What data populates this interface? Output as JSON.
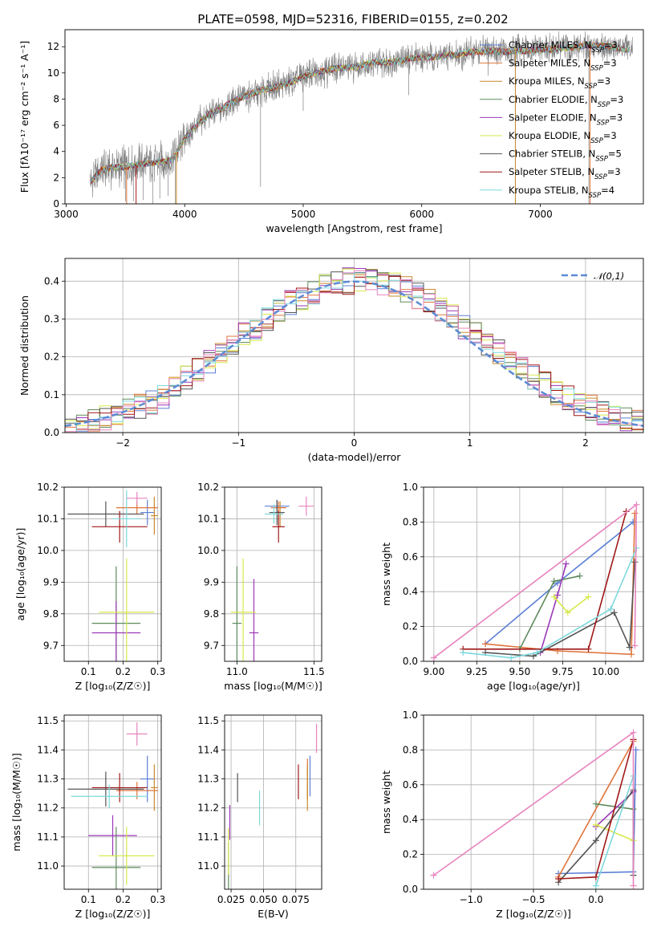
{
  "colors": {
    "chabrier_miles": "#5B7FD4",
    "salpeter_miles": "#E0743C",
    "kroupa_miles": "#C98A2C",
    "chabrier_elodie": "#5E8A5C",
    "salpeter_elodie": "#9B38B8",
    "kroupa_elodie": "#D8E84C",
    "chabrier_stelib": "#555555",
    "salpeter_stelib": "#A01818",
    "kroupa_stelib": "#7CD8DC",
    "extra": "#E784BE",
    "gaussian": "#5B8BD4",
    "spectrum": "#808080"
  },
  "chart_data": [
    {
      "panel": "spectrum",
      "type": "line",
      "title": "PLATE=0598, MJD=52316, FIBERID=0155, z=0.202",
      "xlabel": "wavelength [Angstrom, rest frame]",
      "ylabel": "Flux [fλ10⁻¹⁷ erg cm⁻² s⁻¹ A⁻¹]",
      "xlim": [
        2990,
        7870
      ],
      "ylim": [
        0,
        13.3
      ],
      "xticks": [
        "3000",
        "4000",
        "5000",
        "6000",
        "7000"
      ],
      "yticks": [
        "0",
        "2",
        "4",
        "6",
        "8",
        "10",
        "12"
      ],
      "legend_position": "upper right",
      "legend": [
        {
          "label": "Chabrier MILES, N",
          "sub": "SSP",
          "tail": "=3",
          "color": "chabrier_miles"
        },
        {
          "label": "Salpeter MILES, N",
          "sub": "SSP",
          "tail": "=3",
          "color": "salpeter_miles"
        },
        {
          "label": "Kroupa MILES, N",
          "sub": "SSP",
          "tail": "=3",
          "color": "kroupa_miles"
        },
        {
          "label": "Chabrier ELODIE, N",
          "sub": "SSP",
          "tail": "=3",
          "color": "chabrier_elodie"
        },
        {
          "label": "Salpeter ELODIE, N",
          "sub": "SSP",
          "tail": "=3",
          "color": "salpeter_elodie"
        },
        {
          "label": "Kroupa ELODIE, N",
          "sub": "SSP",
          "tail": "=3",
          "color": "kroupa_elodie"
        },
        {
          "label": "Chabrier STELIB, N",
          "sub": "SSP",
          "tail": "=5",
          "color": "chabrier_stelib"
        },
        {
          "label": "Salpeter STELIB, N",
          "sub": "SSP",
          "tail": "=3",
          "color": "salpeter_stelib"
        },
        {
          "label": "Kroupa STELIB, N",
          "sub": "SSP",
          "tail": "=4",
          "color": "kroupa_stelib"
        }
      ],
      "continuum": {
        "x": [
          3200,
          3300,
          3400,
          3500,
          3600,
          3700,
          3800,
          3900,
          4000,
          4100,
          4200,
          4300,
          4400,
          4500,
          4600,
          4700,
          4800,
          4900,
          5000,
          5100,
          5200,
          5300,
          5400,
          5500,
          5600,
          5700,
          5800,
          5900,
          6000,
          6100,
          6200,
          6300,
          6400,
          6500,
          6600,
          6700,
          6800,
          6900,
          7000,
          7100,
          7200,
          7300,
          7400,
          7500,
          7600,
          7700
        ],
        "y": [
          1.6,
          2.6,
          2.8,
          2.8,
          3.0,
          3.1,
          3.2,
          3.4,
          5.0,
          6.0,
          6.8,
          7.2,
          7.8,
          8.2,
          8.5,
          8.8,
          9.0,
          9.3,
          9.7,
          10.0,
          10.2,
          10.4,
          10.4,
          10.6,
          10.8,
          10.8,
          10.9,
          11.1,
          11.2,
          11.2,
          11.3,
          11.4,
          11.6,
          11.6,
          11.7,
          11.6,
          11.7,
          11.7,
          11.8,
          11.8,
          11.9,
          12.0,
          12.1,
          12.1,
          12.0,
          11.8
        ]
      },
      "spikes": [
        {
          "x": 3500,
          "y": 0.2
        },
        {
          "x": 3570,
          "y": 0.2
        },
        {
          "x": 3650,
          "y": 0.3
        },
        {
          "x": 3730,
          "y": 0.0
        },
        {
          "x": 3790,
          "y": 0.4
        },
        {
          "x": 3860,
          "y": 0.6
        },
        {
          "x": 3920,
          "y": 0.0
        },
        {
          "x": 4640,
          "y": 1.3
        },
        {
          "x": 5000,
          "y": 7.1
        },
        {
          "x": 5180,
          "y": 8.8
        },
        {
          "x": 5260,
          "y": 9.4
        },
        {
          "x": 5890,
          "y": 8.3
        },
        {
          "x": 6560,
          "y": 9.8
        },
        {
          "x": 6790,
          "y": 0.0
        },
        {
          "x": 7410,
          "y": 0.0
        }
      ]
    },
    {
      "panel": "residuals",
      "type": "step-histogram",
      "xlabel": "(data-model)/error",
      "ylabel": "Normed distribution",
      "xlim": [
        -2.5,
        2.5
      ],
      "ylim": [
        0,
        0.46
      ],
      "xticks": [
        "−2",
        "−1",
        "0",
        "1",
        "2"
      ],
      "yticks": [
        "0.0",
        "0.1",
        "0.2",
        "0.3",
        "0.4"
      ],
      "legend": [
        {
          "label": "𝒩(0,1)",
          "color": "gaussian"
        }
      ],
      "legend_position": "upper right",
      "bin_width": 0.1,
      "profile": [
        0.015,
        0.022,
        0.03,
        0.04,
        0.046,
        0.055,
        0.068,
        0.082,
        0.098,
        0.118,
        0.142,
        0.162,
        0.185,
        0.205,
        0.228,
        0.255,
        0.278,
        0.3,
        0.322,
        0.34,
        0.355,
        0.372,
        0.385,
        0.395,
        0.4,
        0.405,
        0.4,
        0.398,
        0.392,
        0.378,
        0.362,
        0.345,
        0.325,
        0.305,
        0.282,
        0.258,
        0.238,
        0.212,
        0.188,
        0.168,
        0.146,
        0.126,
        0.106,
        0.092,
        0.078,
        0.065,
        0.054,
        0.045,
        0.035,
        0.026
      ]
    },
    {
      "panel": "age-vs-Z",
      "type": "scatter-errorbar",
      "xlabel": "Z [log₁₀(Z/Z☉)]",
      "ylabel": "age  [log₁₀(age/yr)]",
      "xlim": [
        0.03,
        0.31
      ],
      "ylim": [
        9.65,
        10.2
      ],
      "xticks": [
        "0.1",
        "0.2",
        "0.3"
      ],
      "yticks": [
        "9.7",
        "9.8",
        "9.9",
        "10.0",
        "10.1",
        "10.2"
      ],
      "points": [
        {
          "c": "chabrier_miles",
          "x": 0.27,
          "xe": 0.02,
          "y": 10.12,
          "ye": 0.04
        },
        {
          "c": "salpeter_miles",
          "x": 0.24,
          "xe": 0.06,
          "y": 10.135,
          "ye": 0.02
        },
        {
          "c": "kroupa_miles",
          "x": 0.29,
          "xe": 0.01,
          "y": 10.11,
          "ye": 0.06
        },
        {
          "c": "chabrier_elodie",
          "x": 0.18,
          "xe": 0.07,
          "y": 9.77,
          "ye": 0.18
        },
        {
          "c": "salpeter_elodie",
          "x": 0.18,
          "xe": 0.07,
          "y": 9.74,
          "ye": 0.1
        },
        {
          "c": "kroupa_elodie",
          "x": 0.21,
          "xe": 0.08,
          "y": 9.805,
          "ye": 0.17
        },
        {
          "c": "chabrier_stelib",
          "x": 0.15,
          "xe": 0.11,
          "y": 10.115,
          "ye": 0.04
        },
        {
          "c": "salpeter_stelib",
          "x": 0.19,
          "xe": 0.08,
          "y": 10.075,
          "ye": 0.05
        },
        {
          "c": "kroupa_stelib",
          "x": 0.21,
          "xe": 0.04,
          "y": 10.1,
          "ye": 0.09
        },
        {
          "c": "extra",
          "x": 0.24,
          "xe": 0.03,
          "y": 10.165,
          "ye": 0.02
        }
      ]
    },
    {
      "panel": "age-vs-mass",
      "type": "scatter-errorbar",
      "xlabel": "mass [log₁₀(M/M☉)]",
      "ylabel": "",
      "xlim": [
        10.92,
        11.55
      ],
      "ylim": [
        9.65,
        10.2
      ],
      "xticks": [
        "11.0",
        "11.5"
      ],
      "yticks": [
        "9.7",
        "9.8",
        "9.9",
        "10.0",
        "10.1",
        "10.2"
      ],
      "points": [
        {
          "c": "chabrier_miles",
          "x": 11.26,
          "xe": 0.08,
          "y": 10.14,
          "ye": 0.02
        },
        {
          "c": "salpeter_miles",
          "x": 11.27,
          "xe": 0.05,
          "y": 10.135,
          "ye": 0.02
        },
        {
          "c": "kroupa_miles",
          "x": 11.28,
          "xe": 0.02,
          "y": 10.115,
          "ye": 0.04
        },
        {
          "c": "chabrier_elodie",
          "x": 11.0,
          "xe": 0.03,
          "y": 9.77,
          "ye": 0.18
        },
        {
          "c": "salpeter_elodie",
          "x": 11.11,
          "xe": 0.03,
          "y": 9.74,
          "ye": 0.17
        },
        {
          "c": "kroupa_elodie",
          "x": 11.04,
          "xe": 0.08,
          "y": 9.805,
          "ye": 0.17
        },
        {
          "c": "chabrier_stelib",
          "x": 11.26,
          "xe": 0.05,
          "y": 10.12,
          "ye": 0.04
        },
        {
          "c": "salpeter_stelib",
          "x": 11.27,
          "xe": 0.04,
          "y": 10.075,
          "ye": 0.05
        },
        {
          "c": "kroupa_stelib",
          "x": 11.24,
          "xe": 0.06,
          "y": 10.115,
          "ye": 0.03
        },
        {
          "c": "extra",
          "x": 11.45,
          "xe": 0.05,
          "y": 10.14,
          "ye": 0.03
        }
      ]
    },
    {
      "panel": "massweight-vs-age",
      "type": "line",
      "xlabel": "age  [log₁₀(age/yr)]",
      "ylabel": "mass weight",
      "xlim": [
        8.94,
        10.22
      ],
      "ylim": [
        0,
        1.0
      ],
      "xticks": [
        "9.00",
        "9.25",
        "9.50",
        "9.75",
        "10.00"
      ],
      "yticks": [
        "0.0",
        "0.2",
        "0.4",
        "0.6",
        "0.8",
        "1.0"
      ],
      "series": [
        {
          "c": "chabrier_miles",
          "pts": [
            [
              9.3,
              0.1
            ],
            [
              9.72,
              0.45
            ],
            [
              10.16,
              0.8
            ]
          ]
        },
        {
          "c": "salpeter_miles",
          "pts": [
            [
              9.3,
              0.1
            ],
            [
              9.72,
              0.06
            ],
            [
              10.15,
              0.04
            ],
            [
              10.17,
              0.85
            ]
          ]
        },
        {
          "c": "chabrier_elodie",
          "pts": [
            [
              9.5,
              0.07
            ],
            [
              9.7,
              0.46
            ],
            [
              9.85,
              0.49
            ]
          ]
        },
        {
          "c": "salpeter_elodie",
          "pts": [
            [
              9.62,
              0.05
            ],
            [
              9.72,
              0.38
            ],
            [
              9.77,
              0.56
            ]
          ]
        },
        {
          "c": "kroupa_elodie",
          "pts": [
            [
              9.7,
              0.37
            ],
            [
              9.78,
              0.28
            ],
            [
              9.9,
              0.37
            ]
          ]
        },
        {
          "c": "chabrier_stelib",
          "pts": [
            [
              9.3,
              0.05
            ],
            [
              9.58,
              0.03
            ],
            [
              10.05,
              0.28
            ],
            [
              10.14,
              0.08
            ],
            [
              10.17,
              0.57
            ]
          ]
        },
        {
          "c": "salpeter_stelib",
          "pts": [
            [
              9.17,
              0.07
            ],
            [
              9.9,
              0.07
            ],
            [
              10.12,
              0.86
            ]
          ]
        },
        {
          "c": "kroupa_stelib",
          "pts": [
            [
              9.17,
              0.05
            ],
            [
              9.45,
              0.02
            ],
            [
              9.6,
              0.05
            ],
            [
              10.03,
              0.3
            ],
            [
              10.18,
              0.65
            ]
          ]
        },
        {
          "c": "extra",
          "pts": [
            [
              9.0,
              0.02
            ],
            [
              10.18,
              0.9
            ],
            [
              10.17,
              0.09
            ]
          ]
        }
      ]
    },
    {
      "panel": "mass-vs-Z",
      "type": "scatter-errorbar",
      "xlabel": "Z [log₁₀(Z/Z☉)]",
      "ylabel": "mass [log₁₀(M/M☉)]",
      "xlim": [
        0.03,
        0.31
      ],
      "ylim": [
        10.92,
        11.52
      ],
      "xticks": [
        "0.1",
        "0.2",
        "0.3"
      ],
      "yticks": [
        "11.0",
        "11.1",
        "11.2",
        "11.3",
        "11.4",
        "11.5"
      ],
      "points": [
        {
          "c": "chabrier_miles",
          "x": 0.27,
          "xe": 0.02,
          "y": 11.3,
          "ye": 0.08
        },
        {
          "c": "salpeter_miles",
          "x": 0.24,
          "xe": 0.06,
          "y": 11.26,
          "ye": 0.03
        },
        {
          "c": "kroupa_miles",
          "x": 0.29,
          "xe": 0.01,
          "y": 11.27,
          "ye": 0.08
        },
        {
          "c": "chabrier_elodie",
          "x": 0.18,
          "xe": 0.07,
          "y": 10.995,
          "ye": 0.14
        },
        {
          "c": "salpeter_elodie",
          "x": 0.17,
          "xe": 0.07,
          "y": 11.105,
          "ye": 0.07
        },
        {
          "c": "kroupa_elodie",
          "x": 0.21,
          "xe": 0.08,
          "y": 11.035,
          "ye": 0.1
        },
        {
          "c": "chabrier_stelib",
          "x": 0.15,
          "xe": 0.11,
          "y": 11.265,
          "ye": 0.06
        },
        {
          "c": "salpeter_stelib",
          "x": 0.19,
          "xe": 0.08,
          "y": 11.27,
          "ye": 0.05
        },
        {
          "c": "kroupa_stelib",
          "x": 0.16,
          "xe": 0.11,
          "y": 11.24,
          "ye": 0.04
        },
        {
          "c": "extra",
          "x": 0.24,
          "xe": 0.03,
          "y": 11.455,
          "ye": 0.04
        }
      ]
    },
    {
      "panel": "mass-vs-EBV",
      "type": "scatter-errorbar",
      "xlabel": "E(B-V)",
      "ylabel": "",
      "xlim": [
        0.02,
        0.095
      ],
      "ylim": [
        10.92,
        11.52
      ],
      "xticks": [
        "0.025",
        "0.050",
        "0.075"
      ],
      "yticks": [
        "11.0",
        "11.1",
        "11.2",
        "11.3",
        "11.4",
        "11.5"
      ],
      "points": [
        {
          "c": "chabrier_miles",
          "x": 0.086,
          "xe": 0,
          "y": 11.31,
          "ye": 0.07
        },
        {
          "c": "salpeter_miles",
          "x": 0.084,
          "xe": 0,
          "y": 11.3,
          "ye": 0.07
        },
        {
          "c": "kroupa_miles",
          "x": 0.084,
          "xe": 0,
          "y": 11.27,
          "ye": 0.08
        },
        {
          "c": "chabrier_elodie",
          "x": 0.023,
          "xe": 0,
          "y": 11.0,
          "ye": 0.08
        },
        {
          "c": "salpeter_elodie",
          "x": 0.024,
          "xe": 0,
          "y": 11.15,
          "ye": 0.06
        },
        {
          "c": "kroupa_elodie",
          "x": 0.023,
          "xe": 0,
          "y": 11.05,
          "ye": 0.08
        },
        {
          "c": "chabrier_stelib",
          "x": 0.03,
          "xe": 0,
          "y": 11.27,
          "ye": 0.05
        },
        {
          "c": "salpeter_stelib",
          "x": 0.077,
          "xe": 0,
          "y": 11.29,
          "ye": 0.06
        },
        {
          "c": "kroupa_stelib",
          "x": 0.047,
          "xe": 0,
          "y": 11.2,
          "ye": 0.06
        },
        {
          "c": "extra",
          "x": 0.091,
          "xe": 0,
          "y": 11.44,
          "ye": 0.05
        }
      ]
    },
    {
      "panel": "massweight-vs-Z",
      "type": "line",
      "xlabel": "Z [log₁₀(Z/Z☉)]",
      "ylabel": "mass weight",
      "xlim": [
        -1.38,
        0.38
      ],
      "ylim": [
        0,
        1.0
      ],
      "xticks": [
        "−1.0",
        "−0.5",
        "0.0"
      ],
      "yticks": [
        "0.0",
        "0.2",
        "0.4",
        "0.6",
        "0.8",
        "1.0"
      ],
      "series": [
        {
          "c": "chabrier_miles",
          "pts": [
            [
              -0.3,
              0.09
            ],
            [
              0.3,
              0.1
            ],
            [
              0.32,
              0.8
            ]
          ]
        },
        {
          "c": "salpeter_miles",
          "pts": [
            [
              -0.3,
              0.07
            ],
            [
              0.3,
              0.85
            ]
          ]
        },
        {
          "c": "chabrier_elodie",
          "pts": [
            [
              0.0,
              0.49
            ],
            [
              0.3,
              0.46
            ]
          ]
        },
        {
          "c": "salpeter_elodie",
          "pts": [
            [
              0.0,
              0.36
            ],
            [
              0.3,
              0.56
            ]
          ]
        },
        {
          "c": "kroupa_elodie",
          "pts": [
            [
              0.0,
              0.37
            ],
            [
              0.3,
              0.28
            ]
          ]
        },
        {
          "c": "chabrier_stelib",
          "pts": [
            [
              -0.3,
              0.04
            ],
            [
              0.0,
              0.28
            ],
            [
              0.3,
              0.57
            ],
            [
              0.3,
              0.08
            ]
          ]
        },
        {
          "c": "salpeter_stelib",
          "pts": [
            [
              -0.3,
              0.06
            ],
            [
              0.0,
              0.07
            ],
            [
              0.3,
              0.86
            ]
          ]
        },
        {
          "c": "kroupa_stelib",
          "pts": [
            [
              0.0,
              0.02
            ],
            [
              0.3,
              0.65
            ]
          ]
        },
        {
          "c": "extra",
          "pts": [
            [
              -1.3,
              0.08
            ],
            [
              0.3,
              0.9
            ],
            [
              0.3,
              0.02
            ]
          ]
        }
      ]
    }
  ]
}
